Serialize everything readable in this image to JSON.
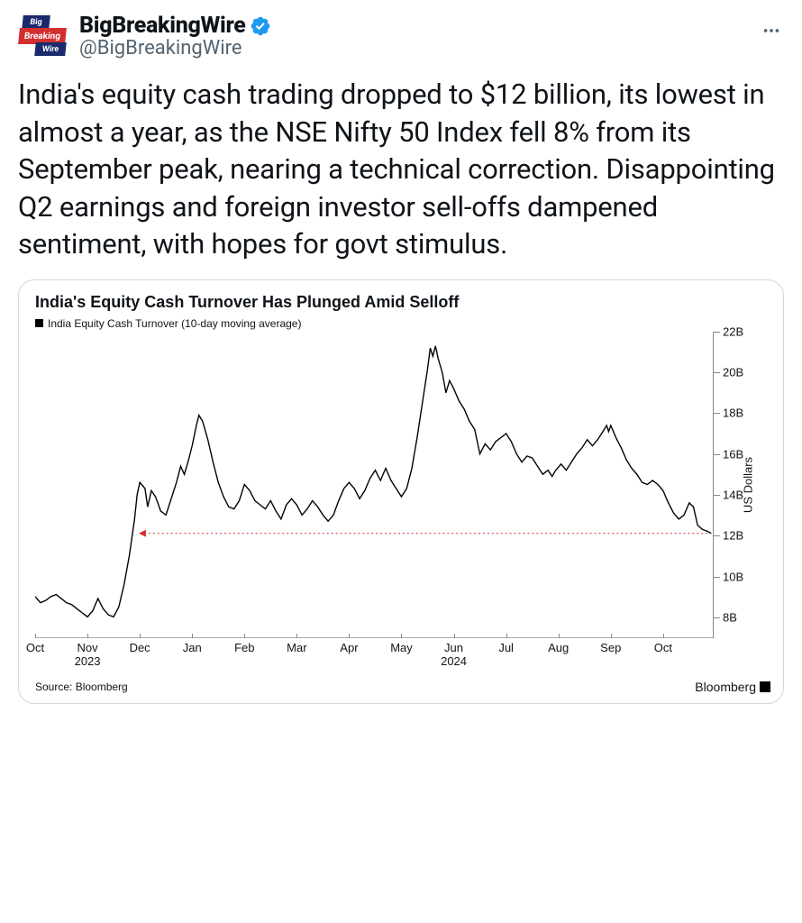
{
  "account": {
    "display_name": "BigBreakingWire",
    "handle": "@BigBreakingWire",
    "verified_color": "#1d9bf0",
    "logo_words": [
      "Big",
      "Breaking",
      "Wire"
    ]
  },
  "tweet_text": "India's equity cash trading dropped to $12 billion, its lowest in almost a year, as the NSE Nifty 50 Index fell 8% from its September peak, nearing a technical correction. Disappointing Q2 earnings and foreign investor sell-offs dampened sentiment, with hopes for govt stimulus.",
  "chart": {
    "title": "India's Equity Cash Turnover Has Plunged Amid Selloff",
    "legend_label": "India Equity Cash Turnover (10-day moving average)",
    "type": "line",
    "ylabel": "US Dollars",
    "ylim_min": 7,
    "ylim_max": 22,
    "yticks": [
      8,
      10,
      12,
      14,
      16,
      18,
      20,
      22
    ],
    "ytick_labels": [
      "8B",
      "10B",
      "12B",
      "14B",
      "16B",
      "18B",
      "20B",
      "22B"
    ],
    "x_count": 13,
    "xtick_labels": [
      "Oct",
      "Nov\n2023",
      "Dec",
      "Jan",
      "Feb",
      "Mar",
      "Apr",
      "May",
      "Jun\n2024",
      "Jul",
      "Aug",
      "Sep",
      "Oct"
    ],
    "reference_y": 12.1,
    "reference_x_start": 1.98,
    "reference_x_end": 12.9,
    "reference_color": "#d32f2f",
    "line_color": "#000000",
    "line_width": 1.4,
    "background_color": "#ffffff",
    "source": "Source: Bloomberg",
    "attribution": "Bloomberg",
    "series": [
      [
        0.0,
        9.0
      ],
      [
        0.1,
        8.7
      ],
      [
        0.2,
        8.8
      ],
      [
        0.3,
        9.0
      ],
      [
        0.4,
        9.1
      ],
      [
        0.5,
        8.9
      ],
      [
        0.6,
        8.7
      ],
      [
        0.7,
        8.6
      ],
      [
        0.8,
        8.4
      ],
      [
        0.9,
        8.2
      ],
      [
        1.0,
        8.0
      ],
      [
        1.1,
        8.3
      ],
      [
        1.2,
        8.9
      ],
      [
        1.3,
        8.4
      ],
      [
        1.4,
        8.1
      ],
      [
        1.5,
        8.0
      ],
      [
        1.6,
        8.5
      ],
      [
        1.7,
        9.6
      ],
      [
        1.8,
        11.0
      ],
      [
        1.9,
        12.8
      ],
      [
        1.95,
        14.0
      ],
      [
        2.0,
        14.6
      ],
      [
        2.1,
        14.3
      ],
      [
        2.15,
        13.4
      ],
      [
        2.22,
        14.2
      ],
      [
        2.3,
        13.9
      ],
      [
        2.4,
        13.2
      ],
      [
        2.5,
        13.0
      ],
      [
        2.6,
        13.8
      ],
      [
        2.7,
        14.6
      ],
      [
        2.78,
        15.4
      ],
      [
        2.85,
        15.0
      ],
      [
        2.92,
        15.6
      ],
      [
        3.0,
        16.4
      ],
      [
        3.08,
        17.4
      ],
      [
        3.13,
        17.9
      ],
      [
        3.2,
        17.6
      ],
      [
        3.3,
        16.7
      ],
      [
        3.4,
        15.6
      ],
      [
        3.5,
        14.6
      ],
      [
        3.6,
        13.9
      ],
      [
        3.7,
        13.4
      ],
      [
        3.8,
        13.3
      ],
      [
        3.9,
        13.7
      ],
      [
        4.0,
        14.5
      ],
      [
        4.1,
        14.2
      ],
      [
        4.2,
        13.7
      ],
      [
        4.3,
        13.5
      ],
      [
        4.4,
        13.3
      ],
      [
        4.5,
        13.7
      ],
      [
        4.6,
        13.2
      ],
      [
        4.7,
        12.8
      ],
      [
        4.8,
        13.5
      ],
      [
        4.9,
        13.8
      ],
      [
        5.0,
        13.5
      ],
      [
        5.1,
        13.0
      ],
      [
        5.2,
        13.3
      ],
      [
        5.3,
        13.7
      ],
      [
        5.4,
        13.4
      ],
      [
        5.5,
        13.0
      ],
      [
        5.6,
        12.7
      ],
      [
        5.7,
        13.0
      ],
      [
        5.8,
        13.7
      ],
      [
        5.9,
        14.3
      ],
      [
        6.0,
        14.6
      ],
      [
        6.1,
        14.3
      ],
      [
        6.2,
        13.8
      ],
      [
        6.3,
        14.2
      ],
      [
        6.4,
        14.8
      ],
      [
        6.5,
        15.2
      ],
      [
        6.6,
        14.7
      ],
      [
        6.7,
        15.3
      ],
      [
        6.8,
        14.7
      ],
      [
        6.9,
        14.3
      ],
      [
        7.0,
        13.9
      ],
      [
        7.1,
        14.3
      ],
      [
        7.2,
        15.3
      ],
      [
        7.3,
        16.8
      ],
      [
        7.4,
        18.5
      ],
      [
        7.5,
        20.2
      ],
      [
        7.55,
        21.2
      ],
      [
        7.6,
        20.8
      ],
      [
        7.65,
        21.3
      ],
      [
        7.7,
        20.7
      ],
      [
        7.78,
        20.0
      ],
      [
        7.85,
        19.0
      ],
      [
        7.92,
        19.6
      ],
      [
        8.0,
        19.2
      ],
      [
        8.1,
        18.6
      ],
      [
        8.2,
        18.2
      ],
      [
        8.3,
        17.6
      ],
      [
        8.4,
        17.2
      ],
      [
        8.5,
        16.0
      ],
      [
        8.6,
        16.5
      ],
      [
        8.7,
        16.2
      ],
      [
        8.8,
        16.6
      ],
      [
        8.9,
        16.8
      ],
      [
        9.0,
        17.0
      ],
      [
        9.1,
        16.6
      ],
      [
        9.2,
        16.0
      ],
      [
        9.3,
        15.6
      ],
      [
        9.4,
        15.9
      ],
      [
        9.5,
        15.8
      ],
      [
        9.6,
        15.4
      ],
      [
        9.7,
        15.0
      ],
      [
        9.8,
        15.2
      ],
      [
        9.88,
        14.9
      ],
      [
        9.95,
        15.2
      ],
      [
        10.05,
        15.5
      ],
      [
        10.15,
        15.2
      ],
      [
        10.25,
        15.6
      ],
      [
        10.35,
        16.0
      ],
      [
        10.45,
        16.3
      ],
      [
        10.55,
        16.7
      ],
      [
        10.65,
        16.4
      ],
      [
        10.75,
        16.7
      ],
      [
        10.85,
        17.1
      ],
      [
        10.92,
        17.4
      ],
      [
        10.96,
        17.1
      ],
      [
        11.0,
        17.4
      ],
      [
        11.1,
        16.8
      ],
      [
        11.2,
        16.3
      ],
      [
        11.3,
        15.7
      ],
      [
        11.4,
        15.3
      ],
      [
        11.5,
        15.0
      ],
      [
        11.6,
        14.6
      ],
      [
        11.7,
        14.5
      ],
      [
        11.8,
        14.7
      ],
      [
        11.9,
        14.5
      ],
      [
        12.0,
        14.2
      ],
      [
        12.1,
        13.6
      ],
      [
        12.2,
        13.1
      ],
      [
        12.3,
        12.8
      ],
      [
        12.4,
        13.0
      ],
      [
        12.5,
        13.6
      ],
      [
        12.58,
        13.4
      ],
      [
        12.66,
        12.5
      ],
      [
        12.75,
        12.3
      ],
      [
        12.85,
        12.2
      ],
      [
        12.92,
        12.1
      ]
    ]
  }
}
